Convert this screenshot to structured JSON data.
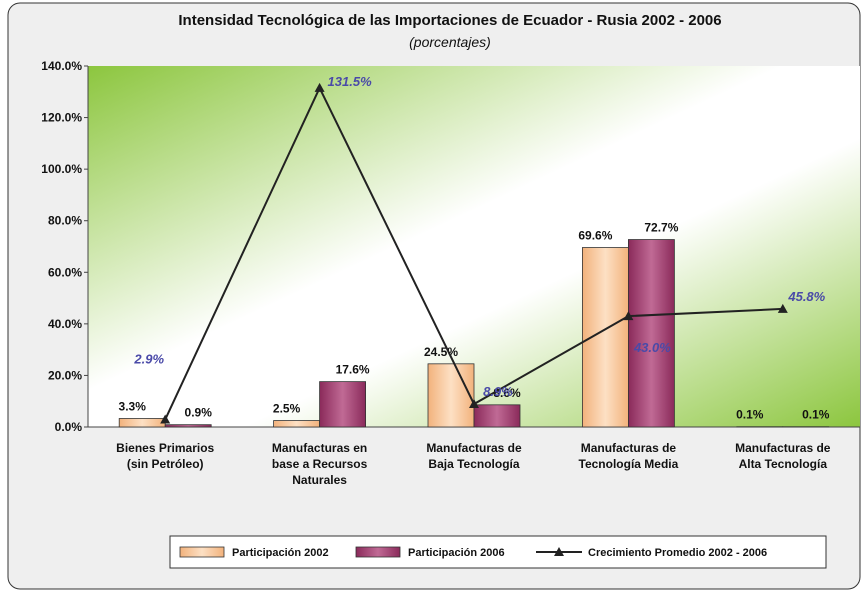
{
  "chart_data": {
    "type": "bar",
    "title": "Intensidad Tecnológica de las Importaciones de Ecuador - Rusia 2002 - 2006",
    "subtitle": "(porcentajes)",
    "categories": [
      "Bienes Primarios\n(sin Petróleo)",
      "Manufacturas en\nbase a Recursos\nNaturales",
      "Manufacturas de\nBaja Tecnología",
      "Manufacturas de\nTecnología Media",
      "Manufacturas de\nAlta Tecnología"
    ],
    "series": [
      {
        "name": "Participación 2002",
        "type": "bar",
        "color": "#f6c395",
        "values": [
          3.3,
          2.5,
          24.5,
          69.6,
          0.1
        ],
        "value_labels": [
          "3.3%",
          "2.5%",
          "24.5%",
          "69.6%",
          "0.1%"
        ]
      },
      {
        "name": "Participación 2006",
        "type": "bar",
        "color": "#9b3366",
        "values": [
          0.9,
          17.6,
          8.6,
          72.7,
          0.1
        ],
        "value_labels": [
          "0.9%",
          "17.6%",
          "8.6%",
          "72.7%",
          "0.1%"
        ]
      },
      {
        "name": "Crecimiento Promedio 2002 - 2006",
        "type": "line",
        "color": "#222222",
        "values": [
          2.9,
          131.5,
          8.9,
          43.0,
          45.8
        ],
        "value_labels": [
          "2.9%",
          "131.5%",
          "8.9%",
          "43.0%",
          "45.8%"
        ]
      }
    ],
    "ylim": [
      0,
      140
    ],
    "yticks": [
      {
        "value": 0,
        "label": "0.0%"
      },
      {
        "value": 20,
        "label": "20.0%"
      },
      {
        "value": 40,
        "label": "40.0%"
      },
      {
        "value": 60,
        "label": "60.0%"
      },
      {
        "value": 80,
        "label": "80.0%"
      },
      {
        "value": 100,
        "label": "100.0%"
      },
      {
        "value": 120,
        "label": "120.0%"
      },
      {
        "value": 140,
        "label": "140.0%"
      }
    ],
    "legend": "bottom"
  }
}
